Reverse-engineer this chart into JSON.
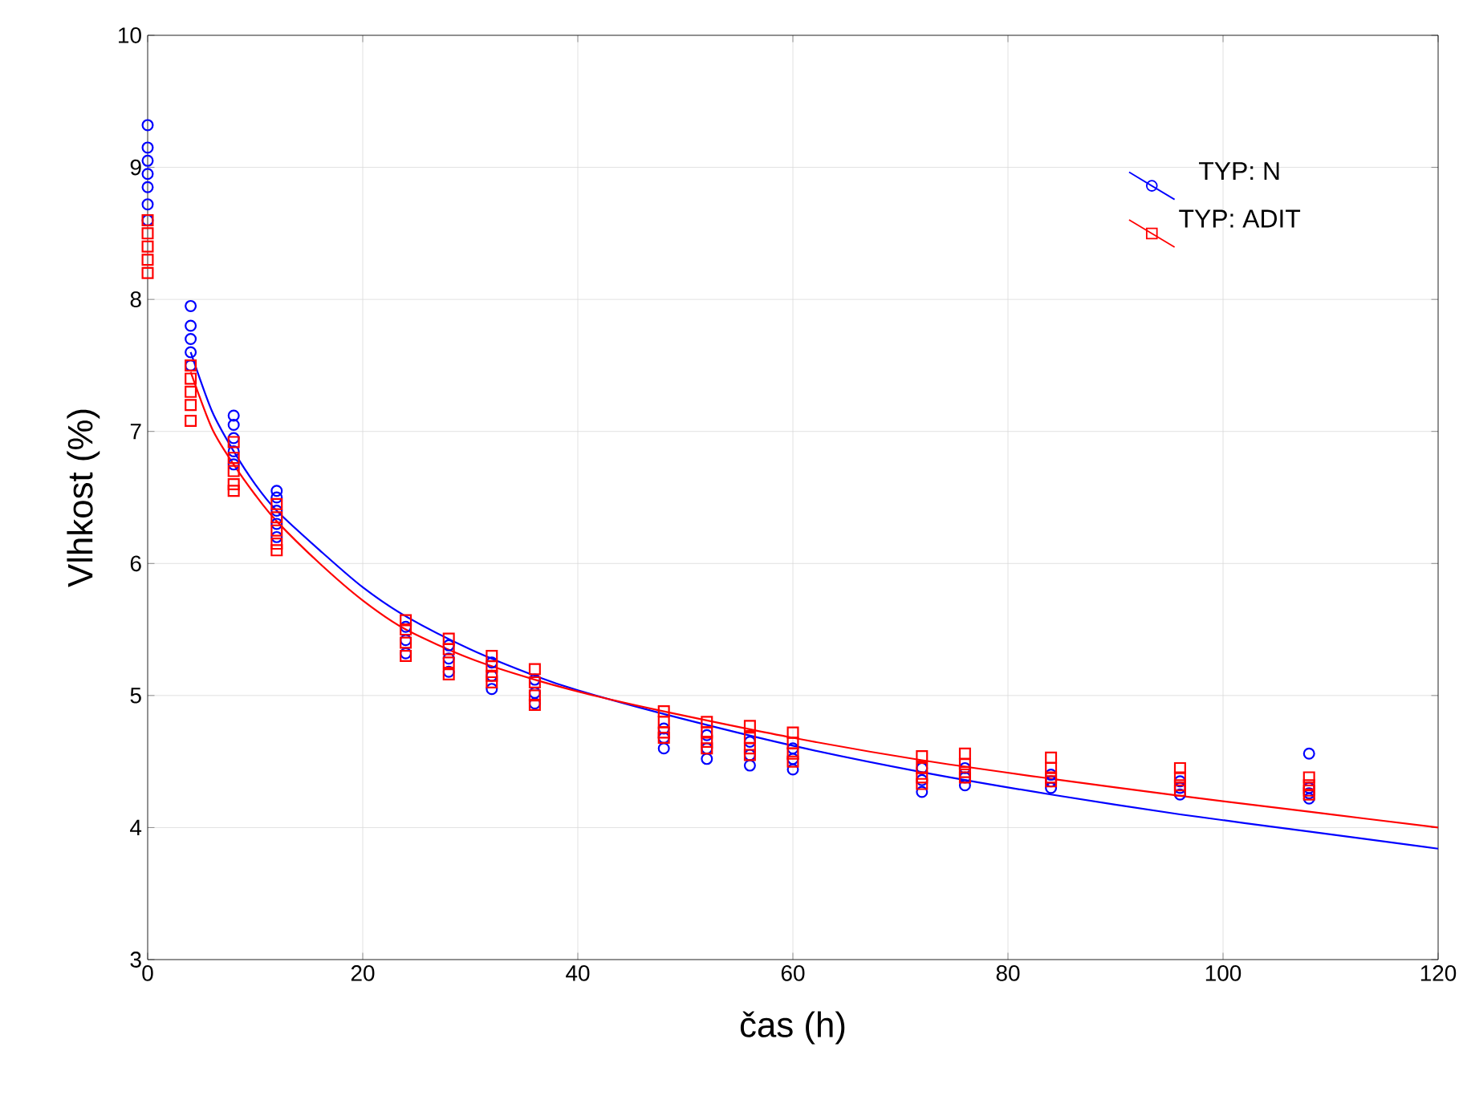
{
  "chart_data": {
    "type": "scatter",
    "xlabel": "čas (h)",
    "ylabel": "Vlhkost (%)",
    "xlim": [
      0,
      120
    ],
    "ylim": [
      3,
      10
    ],
    "xticks": [
      0,
      20,
      40,
      60,
      80,
      100,
      120
    ],
    "yticks": [
      3,
      4,
      5,
      6,
      7,
      8,
      9,
      10
    ],
    "grid": true,
    "legend": "top right",
    "series": [
      {
        "name": "TYP: N",
        "marker": "circle",
        "color": "#0000ff",
        "x": [
          0,
          0,
          0,
          0,
          0,
          0,
          0,
          4,
          4,
          4,
          4,
          4,
          8,
          8,
          8,
          8,
          8,
          12,
          12,
          12,
          12,
          12,
          24,
          24,
          24,
          28,
          28,
          28,
          32,
          32,
          32,
          36,
          36,
          36,
          48,
          48,
          48,
          52,
          52,
          52,
          56,
          56,
          56,
          60,
          60,
          60,
          72,
          72,
          72,
          76,
          76,
          76,
          84,
          84,
          84,
          96,
          96,
          96,
          108,
          108,
          108,
          108
        ],
        "values": [
          9.32,
          9.15,
          9.05,
          8.95,
          8.85,
          8.72,
          8.6,
          7.95,
          7.8,
          7.7,
          7.6,
          7.5,
          7.12,
          7.05,
          6.95,
          6.85,
          6.75,
          6.55,
          6.5,
          6.4,
          6.3,
          6.2,
          5.52,
          5.42,
          5.32,
          5.38,
          5.28,
          5.18,
          5.25,
          5.15,
          5.05,
          5.12,
          5.02,
          4.94,
          4.75,
          4.68,
          4.6,
          4.7,
          4.6,
          4.52,
          4.65,
          4.55,
          4.47,
          4.6,
          4.52,
          4.44,
          4.45,
          4.36,
          4.27,
          4.45,
          4.38,
          4.32,
          4.4,
          4.35,
          4.3,
          4.35,
          4.3,
          4.25,
          4.56,
          4.3,
          4.26,
          4.22
        ]
      },
      {
        "name": "TYP: ADIT",
        "marker": "square",
        "color": "#ff0000",
        "x": [
          0,
          0,
          0,
          0,
          0,
          4,
          4,
          4,
          4,
          4,
          8,
          8,
          8,
          8,
          8,
          12,
          12,
          12,
          12,
          12,
          24,
          24,
          24,
          24,
          28,
          28,
          28,
          28,
          32,
          32,
          32,
          32,
          36,
          36,
          36,
          36,
          48,
          48,
          48,
          48,
          52,
          52,
          52,
          52,
          56,
          56,
          56,
          56,
          60,
          60,
          60,
          60,
          72,
          72,
          72,
          72,
          76,
          76,
          76,
          76,
          84,
          84,
          84,
          84,
          96,
          96,
          96,
          96,
          108,
          108,
          108,
          108
        ],
        "values": [
          8.6,
          8.5,
          8.4,
          8.3,
          8.2,
          7.5,
          7.4,
          7.3,
          7.2,
          7.08,
          6.92,
          6.8,
          6.7,
          6.6,
          6.55,
          6.45,
          6.35,
          6.25,
          6.15,
          6.1,
          5.57,
          5.5,
          5.4,
          5.3,
          5.43,
          5.35,
          5.25,
          5.16,
          5.3,
          5.22,
          5.15,
          5.1,
          5.2,
          5.1,
          5.0,
          4.93,
          4.88,
          4.8,
          4.72,
          4.68,
          4.8,
          4.72,
          4.65,
          4.6,
          4.77,
          4.68,
          4.6,
          4.55,
          4.72,
          4.64,
          4.56,
          4.5,
          4.54,
          4.45,
          4.38,
          4.33,
          4.56,
          4.48,
          4.42,
          4.38,
          4.53,
          4.45,
          4.38,
          4.35,
          4.45,
          4.38,
          4.32,
          4.28,
          4.38,
          4.32,
          4.28,
          4.25
        ]
      },
      {
        "type": "line",
        "color": "#0000ff",
        "x": [
          4,
          6,
          8,
          10,
          12,
          16,
          20,
          24,
          30,
          36,
          40,
          48,
          60,
          72,
          84,
          96,
          108,
          120
        ],
        "values": [
          7.6,
          7.15,
          6.85,
          6.6,
          6.4,
          6.1,
          5.82,
          5.6,
          5.35,
          5.15,
          5.04,
          4.86,
          4.62,
          4.42,
          4.25,
          4.1,
          3.97,
          3.84
        ]
      },
      {
        "type": "line",
        "color": "#ff0000",
        "x": [
          4,
          6,
          8,
          10,
          12,
          16,
          20,
          24,
          30,
          36,
          42,
          48,
          60,
          72,
          84,
          96,
          108,
          120
        ],
        "values": [
          7.45,
          7.02,
          6.75,
          6.52,
          6.32,
          6.0,
          5.72,
          5.5,
          5.28,
          5.12,
          4.99,
          4.88,
          4.68,
          4.51,
          4.37,
          4.24,
          4.12,
          4.0
        ]
      }
    ]
  }
}
